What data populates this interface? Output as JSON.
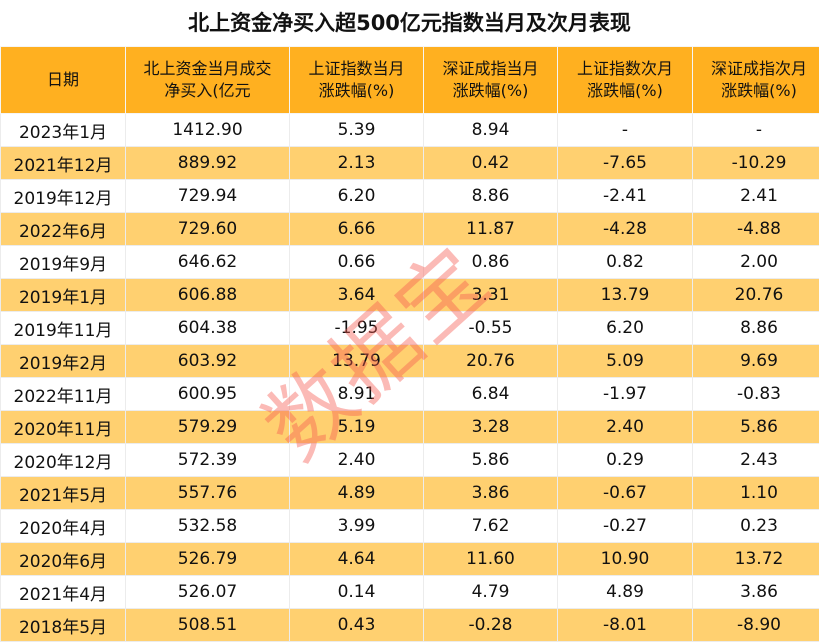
{
  "title": "北上资金净买入超500亿元指数当月及次月表现",
  "watermark": "数据宝",
  "colors": {
    "header_bg": "#FFB020",
    "alt_row_bg": "#FFD070",
    "watermark": "#F55A50"
  },
  "columns": [
    [
      "日期"
    ],
    [
      "北上资金当月成交",
      "净买入(亿元"
    ],
    [
      "上证指数当月",
      "涨跌幅(%)"
    ],
    [
      "深证成指当月",
      "涨跌幅(%)"
    ],
    [
      "上证指数次月",
      "涨跌幅(%)"
    ],
    [
      "深证成指次月",
      "涨跌幅(%)"
    ]
  ],
  "rows": [
    [
      "2023年1月",
      "1412.90",
      "5.39",
      "8.94",
      "-",
      "-"
    ],
    [
      "2021年12月",
      "889.92",
      "2.13",
      "0.42",
      "-7.65",
      "-10.29"
    ],
    [
      "2019年12月",
      "729.94",
      "6.20",
      "8.86",
      "-2.41",
      "2.41"
    ],
    [
      "2022年6月",
      "729.60",
      "6.66",
      "11.87",
      "-4.28",
      "-4.88"
    ],
    [
      "2019年9月",
      "646.62",
      "0.66",
      "0.86",
      "0.82",
      "2.00"
    ],
    [
      "2019年1月",
      "606.88",
      "3.64",
      "3.31",
      "13.79",
      "20.76"
    ],
    [
      "2019年11月",
      "604.38",
      "-1.95",
      "-0.55",
      "6.20",
      "8.86"
    ],
    [
      "2019年2月",
      "603.92",
      "13.79",
      "20.76",
      "5.09",
      "9.69"
    ],
    [
      "2022年11月",
      "600.95",
      "8.91",
      "6.84",
      "-1.97",
      "-0.83"
    ],
    [
      "2020年11月",
      "579.29",
      "5.19",
      "3.28",
      "2.40",
      "5.86"
    ],
    [
      "2020年12月",
      "572.39",
      "2.40",
      "5.86",
      "0.29",
      "2.43"
    ],
    [
      "2021年5月",
      "557.76",
      "4.89",
      "3.86",
      "-0.67",
      "1.10"
    ],
    [
      "2020年4月",
      "532.58",
      "3.99",
      "7.62",
      "-0.27",
      "0.23"
    ],
    [
      "2020年6月",
      "526.79",
      "4.64",
      "11.60",
      "10.90",
      "13.72"
    ],
    [
      "2021年4月",
      "526.07",
      "0.14",
      "4.79",
      "4.89",
      "3.86"
    ],
    [
      "2018年5月",
      "508.51",
      "0.43",
      "-0.28",
      "-8.01",
      "-8.90"
    ]
  ]
}
